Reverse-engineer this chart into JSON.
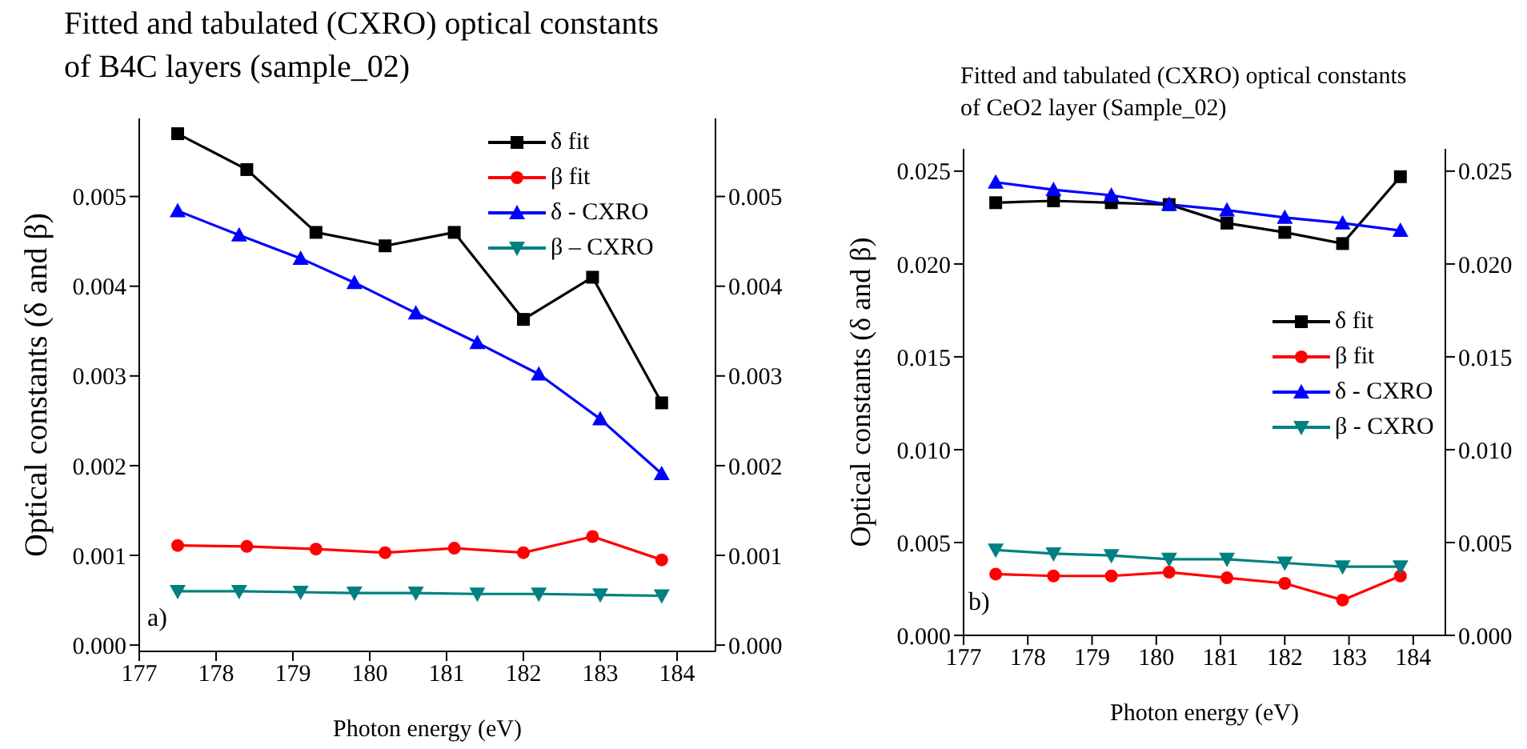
{
  "chart_data": [
    {
      "type": "line",
      "title": "Fitted and tabulated (CXRO) optical constants\nof B4C layers (sample_02)",
      "xlabel": "Photon energy (eV)",
      "ylabel": "Optical constants (δ and β)",
      "annotations": [
        "a)"
      ],
      "legend": "top right",
      "grid": false,
      "xlim": [
        177,
        184.5
      ],
      "xticks": [
        177,
        178,
        179,
        180,
        181,
        182,
        183,
        184
      ],
      "ylim": [
        -7e-05,
        0.00587
      ],
      "yticks": [
        {
          "value": 0,
          "label": "0.000"
        },
        {
          "value": 0.001,
          "label": "0.001"
        },
        {
          "value": 0.002,
          "label": "0.002"
        },
        {
          "value": 0.003,
          "label": "0.003"
        },
        {
          "value": 0.004,
          "label": "0.004"
        },
        {
          "value": 0.005,
          "label": "0.005"
        }
      ],
      "y2lim": [
        -7e-05,
        0.00587
      ],
      "y2ticks": [
        {
          "value": 0,
          "label": "0.000"
        },
        {
          "value": 0.001,
          "label": "0.001"
        },
        {
          "value": 0.002,
          "label": "0.002"
        },
        {
          "value": 0.003,
          "label": "0.003"
        },
        {
          "value": 0.004,
          "label": "0.004"
        },
        {
          "value": 0.005,
          "label": "0.005"
        }
      ],
      "series": [
        {
          "name": "δ fit",
          "color": "#000000",
          "marker": "square",
          "x": [
            177.5,
            178.4,
            179.3,
            180.2,
            181.1,
            182.0,
            182.9,
            183.8
          ],
          "values": [
            0.0057,
            0.0053,
            0.0046,
            0.00445,
            0.0046,
            0.00363,
            0.0041,
            0.0027
          ]
        },
        {
          "name": "β fit",
          "color": "#ff0000",
          "marker": "circle",
          "x": [
            177.5,
            178.4,
            179.3,
            180.2,
            181.1,
            182.0,
            182.9,
            183.8
          ],
          "values": [
            0.00111,
            0.0011,
            0.00107,
            0.00103,
            0.00108,
            0.00103,
            0.00121,
            0.00095
          ]
        },
        {
          "name": "δ - CXRO",
          "color": "#0000ff",
          "marker": "triangle",
          "x": [
            177.5,
            178.3,
            179.1,
            179.8,
            180.6,
            181.4,
            182.2,
            183.0,
            183.8
          ],
          "values": [
            0.00484,
            0.00457,
            0.00431,
            0.00404,
            0.0037,
            0.00337,
            0.00302,
            0.00252,
            0.00191
          ]
        },
        {
          "name": "β – CXRO",
          "color": "#008080",
          "marker": "triangle-down",
          "x": [
            177.5,
            178.3,
            179.1,
            179.8,
            180.6,
            181.4,
            182.2,
            183.0,
            183.8
          ],
          "values": [
            0.0006,
            0.0006,
            0.00059,
            0.00058,
            0.00058,
            0.00057,
            0.00057,
            0.00056,
            0.00055
          ]
        }
      ]
    },
    {
      "type": "line",
      "title": "Fitted and tabulated (CXRO) optical constants\nof CeO2 layer (Sample_02)",
      "xlabel": "Photon energy (eV)",
      "ylabel": "Optical constants (δ and β)",
      "annotations": [
        "b)"
      ],
      "legend": "right",
      "grid": false,
      "xlim": [
        177,
        184.5
      ],
      "xticks": [
        177,
        178,
        179,
        180,
        181,
        182,
        183,
        184
      ],
      "ylim": [
        0,
        0.0262
      ],
      "yticks": [
        {
          "value": 0,
          "label": "0.000"
        },
        {
          "value": 0.005,
          "label": "0.005"
        },
        {
          "value": 0.01,
          "label": "0.010"
        },
        {
          "value": 0.015,
          "label": "0.015"
        },
        {
          "value": 0.02,
          "label": "0.020"
        },
        {
          "value": 0.025,
          "label": "0.025"
        }
      ],
      "y2lim": [
        0,
        0.0262
      ],
      "y2ticks": [
        {
          "value": 0,
          "label": "0.000"
        },
        {
          "value": 0.005,
          "label": "0.005"
        },
        {
          "value": 0.01,
          "label": "0.010"
        },
        {
          "value": 0.015,
          "label": "0.015"
        },
        {
          "value": 0.02,
          "label": "0.020"
        },
        {
          "value": 0.025,
          "label": "0.025"
        }
      ],
      "series": [
        {
          "name": "δ fit",
          "color": "#000000",
          "marker": "square",
          "x": [
            177.5,
            178.4,
            179.3,
            180.2,
            181.1,
            182.0,
            182.9,
            183.8
          ],
          "values": [
            0.0233,
            0.0234,
            0.0233,
            0.0232,
            0.0222,
            0.0217,
            0.0211,
            0.0247
          ]
        },
        {
          "name": "β fit",
          "color": "#ff0000",
          "marker": "circle",
          "x": [
            177.5,
            178.4,
            179.3,
            180.2,
            181.1,
            182.0,
            182.9,
            183.8
          ],
          "values": [
            0.0033,
            0.0032,
            0.0032,
            0.0034,
            0.0031,
            0.0028,
            0.0019,
            0.0032
          ]
        },
        {
          "name": "δ - CXRO",
          "color": "#0000ff",
          "marker": "triangle",
          "x": [
            177.5,
            178.4,
            179.3,
            180.2,
            181.1,
            182.0,
            182.9,
            183.8
          ],
          "values": [
            0.0244,
            0.024,
            0.0237,
            0.0232,
            0.0229,
            0.0225,
            0.0222,
            0.0218
          ]
        },
        {
          "name": "β - CXRO",
          "color": "#008080",
          "marker": "triangle-down",
          "x": [
            177.5,
            178.4,
            179.3,
            180.2,
            181.1,
            182.0,
            182.9,
            183.8
          ],
          "values": [
            0.0046,
            0.0044,
            0.0043,
            0.0041,
            0.0041,
            0.0039,
            0.0037,
            0.0037
          ]
        }
      ]
    }
  ]
}
